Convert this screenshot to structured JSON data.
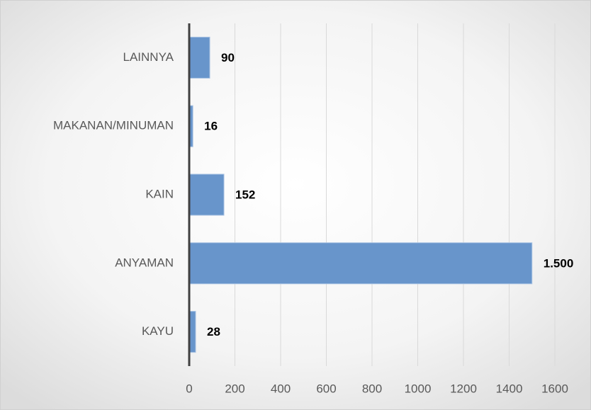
{
  "chart_data": {
    "type": "bar",
    "orientation": "horizontal",
    "categories": [
      "LAINNYA",
      "MAKANAN/MINUMAN",
      "KAIN",
      "ANYAMAN",
      "KAYU"
    ],
    "values": [
      90,
      16,
      152,
      1500,
      28
    ],
    "value_labels": [
      "90",
      "16",
      "152",
      "1.500",
      "28"
    ],
    "color": "#6895cb",
    "xlim": [
      0,
      1600
    ],
    "xticks": [
      0,
      200,
      400,
      600,
      800,
      1000,
      1200,
      1400,
      1600
    ],
    "grid": true
  }
}
